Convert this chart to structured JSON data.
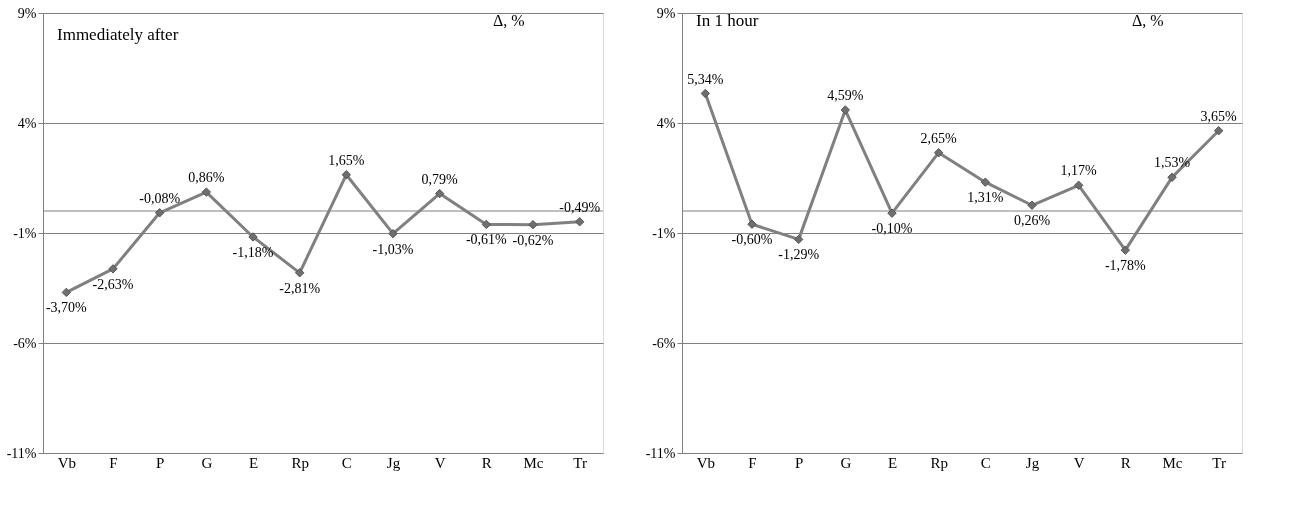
{
  "chart_data": [
    {
      "type": "line",
      "title": "Immediately after",
      "ylabel": "Δ, %",
      "categories": [
        "Vb",
        "F",
        "P",
        "G",
        "E",
        "Rp",
        "C",
        "Jg",
        "V",
        "R",
        "Mc",
        "Tr"
      ],
      "series": [
        {
          "color": "#808080",
          "values": [
            -3.7,
            -2.63,
            -0.08,
            0.86,
            -1.18,
            -2.81,
            1.65,
            -1.03,
            0.79,
            -0.61,
            -0.62,
            -0.49
          ],
          "value_labels": [
            "-3,70%",
            "-2,63%",
            "-0,08%",
            "0,86%",
            "-1,18%",
            "-2,81%",
            "1,65%",
            "-1,03%",
            "0,79%",
            "-0,61%",
            "-0,62%",
            "-0,49%"
          ]
        }
      ],
      "ylim": [
        -11,
        9
      ],
      "yticks": [
        {
          "value": -11,
          "label": "-11%"
        },
        {
          "value": -6,
          "label": "-6%"
        },
        {
          "value": -1,
          "label": "-1%"
        },
        {
          "value": 4,
          "label": "4%"
        },
        {
          "value": 9,
          "label": "9%"
        }
      ],
      "grid": "y",
      "marker": "diamond",
      "line_style": "solid",
      "ref_lines": [
        {
          "axis": "y",
          "value": 0,
          "color": "#808080"
        }
      ]
    },
    {
      "type": "line",
      "title": "In 1 hour",
      "ylabel": "Δ, %",
      "categories": [
        "Vb",
        "F",
        "P",
        "G",
        "E",
        "Rp",
        "C",
        "Jg",
        "V",
        "R",
        "Mc",
        "Tr"
      ],
      "series": [
        {
          "color": "#808080",
          "values": [
            5.34,
            -0.6,
            -1.29,
            4.59,
            -0.1,
            2.65,
            1.31,
            0.26,
            1.17,
            -1.78,
            1.53,
            3.65
          ],
          "value_labels": [
            "5,34%",
            "-0,60%",
            "-1,29%",
            "4,59%",
            "-0,10%",
            "2,65%",
            "1,31%",
            "0,26%",
            "1,17%",
            "-1,78%",
            "1,53%",
            "3,65%"
          ]
        }
      ],
      "ylim": [
        -11,
        9
      ],
      "yticks": [
        {
          "value": -11,
          "label": "-11%"
        },
        {
          "value": -6,
          "label": "-6%"
        },
        {
          "value": -1,
          "label": "-1%"
        },
        {
          "value": 4,
          "label": "4%"
        },
        {
          "value": 9,
          "label": "9%"
        }
      ],
      "grid": "y",
      "marker": "diamond",
      "line_style": "solid",
      "ref_lines": [
        {
          "axis": "y",
          "value": 0,
          "color": "#808080"
        }
      ]
    }
  ]
}
